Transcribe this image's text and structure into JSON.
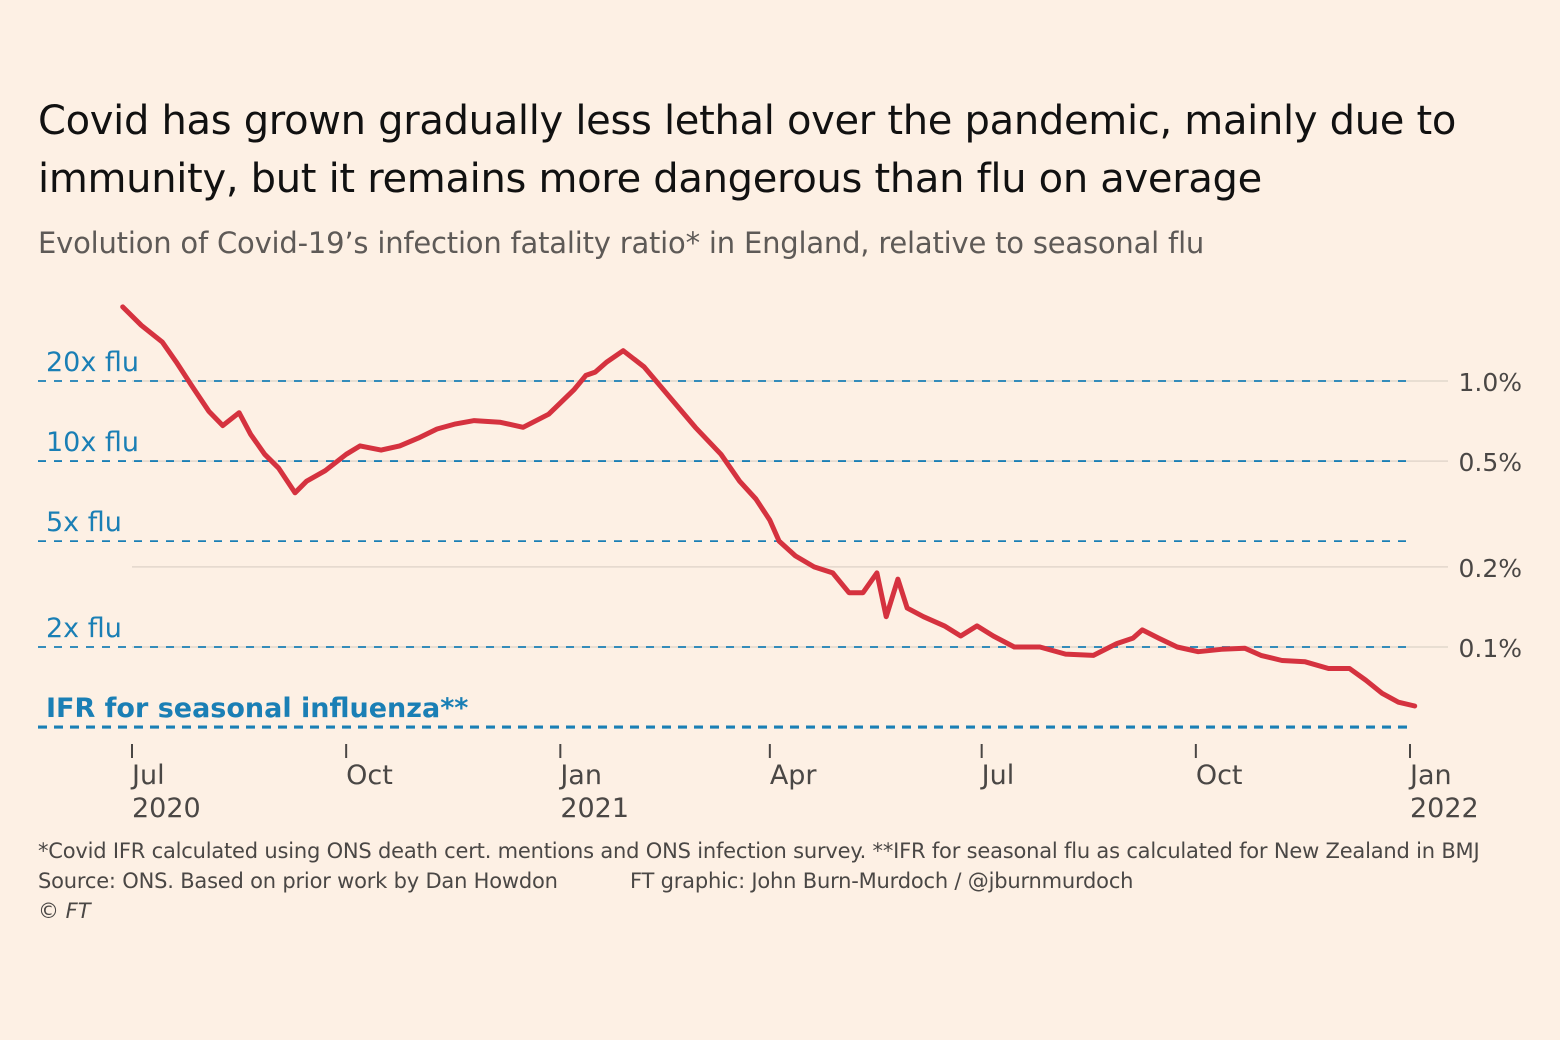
{
  "title": "Covid has grown gradually less lethal over the pandemic, mainly due to immunity, but it remains more dangerous than flu on average",
  "subtitle": "Evolution of Covid-19’s infection fatality ratio* in England, relative to seasonal flu",
  "footnote": "*Covid IFR calculated using ONS death cert. mentions and ONS infection survey. **IFR for seasonal flu as calculated for New Zealand in BMJ",
  "source": "Source: ONS. Based on prior work by Dan Howdon",
  "credit": "FT graphic: John Burn-Murdoch / @jburnmurdoch",
  "copyright": "© FT",
  "colors": {
    "background": "#fdf0e4",
    "series": "#d5323f",
    "reference": "#1a7fb5",
    "gridline": "#e2d7cc",
    "axis_text": "#4a4745"
  },
  "chart_data": {
    "type": "line",
    "title": "Covid has grown gradually less lethal over the pandemic, mainly due to immunity, but it remains more dangerous than flu on average",
    "subtitle": "Evolution of Covid-19’s infection fatality ratio* in England, relative to seasonal flu",
    "xlabel": "",
    "ylabel": "",
    "y_scale": "log",
    "ylim": [
      0.04,
      2.2
    ],
    "xlim": [
      "2020-06-01",
      "2022-01-12"
    ],
    "grid": true,
    "x_ticks": [
      {
        "date": "2020-07-01",
        "label": "Jul",
        "label2": "2020"
      },
      {
        "date": "2020-10-01",
        "label": "Oct",
        "label2": ""
      },
      {
        "date": "2021-01-01",
        "label": "Jan",
        "label2": "2021"
      },
      {
        "date": "2021-04-01",
        "label": "Apr",
        "label2": ""
      },
      {
        "date": "2021-07-01",
        "label": "Jul",
        "label2": ""
      },
      {
        "date": "2021-10-01",
        "label": "Oct",
        "label2": ""
      },
      {
        "date": "2022-01-01",
        "label": "Jan",
        "label2": "2022"
      }
    ],
    "y_ticks": [
      {
        "value": 1.0,
        "label": "1.0%"
      },
      {
        "value": 0.5,
        "label": "0.5%"
      },
      {
        "value": 0.2,
        "label": "0.2%"
      },
      {
        "value": 0.1,
        "label": "0.1%"
      }
    ],
    "reference_lines": [
      {
        "label": "20x flu",
        "multiple": 20,
        "emphasis": false
      },
      {
        "label": "10x flu",
        "multiple": 10,
        "emphasis": false
      },
      {
        "label": "5x flu",
        "multiple": 5,
        "emphasis": false
      },
      {
        "label": "2x flu",
        "multiple": 2,
        "emphasis": false
      },
      {
        "label": "IFR for seasonal influenza**",
        "multiple": 1,
        "emphasis": true
      }
    ],
    "series": [
      {
        "name": "Covid-19 infection fatality ratio (%)",
        "x": [
          "2020-06-27",
          "2020-07-05",
          "2020-07-14",
          "2020-07-20",
          "2020-07-27",
          "2020-08-03",
          "2020-08-09",
          "2020-08-16",
          "2020-08-21",
          "2020-08-27",
          "2020-09-02",
          "2020-09-09",
          "2020-09-14",
          "2020-09-22",
          "2020-10-01",
          "2020-10-07",
          "2020-10-16",
          "2020-10-24",
          "2020-11-01",
          "2020-11-09",
          "2020-11-17",
          "2020-11-25",
          "2020-12-06",
          "2020-12-16",
          "2020-12-27",
          "2021-01-07",
          "2021-01-12",
          "2021-01-16",
          "2021-01-21",
          "2021-01-28",
          "2021-02-06",
          "2021-02-17",
          "2021-02-28",
          "2021-03-11",
          "2021-03-19",
          "2021-03-26",
          "2021-04-01",
          "2021-04-05",
          "2021-04-12",
          "2021-04-20",
          "2021-04-28",
          "2021-05-05",
          "2021-05-11",
          "2021-05-17",
          "2021-05-21",
          "2021-05-26",
          "2021-05-30",
          "2021-06-06",
          "2021-06-15",
          "2021-06-22",
          "2021-06-29",
          "2021-07-06",
          "2021-07-15",
          "2021-07-26",
          "2021-08-06",
          "2021-08-18",
          "2021-08-28",
          "2021-09-04",
          "2021-09-08",
          "2021-09-15",
          "2021-09-23",
          "2021-10-02",
          "2021-10-12",
          "2021-10-22",
          "2021-10-29",
          "2021-11-07",
          "2021-11-17",
          "2021-11-27",
          "2021-12-06",
          "2021-12-13",
          "2021-12-20",
          "2021-12-27",
          "2022-01-03"
        ],
        "values": [
          1.9,
          1.62,
          1.4,
          1.18,
          0.95,
          0.77,
          0.68,
          0.76,
          0.63,
          0.53,
          0.47,
          0.38,
          0.42,
          0.46,
          0.53,
          0.57,
          0.55,
          0.57,
          0.61,
          0.66,
          0.69,
          0.71,
          0.7,
          0.67,
          0.75,
          0.93,
          1.05,
          1.08,
          1.18,
          1.3,
          1.13,
          0.87,
          0.67,
          0.53,
          0.42,
          0.36,
          0.3,
          0.25,
          0.22,
          0.2,
          0.19,
          0.16,
          0.16,
          0.19,
          0.13,
          0.18,
          0.14,
          0.13,
          0.12,
          0.11,
          0.12,
          0.11,
          0.1,
          0.1,
          0.094,
          0.093,
          0.103,
          0.108,
          0.116,
          0.108,
          0.1,
          0.096,
          0.098,
          0.099,
          0.093,
          0.089,
          0.088,
          0.083,
          0.083,
          0.075,
          0.067,
          0.062,
          0.06
        ]
      }
    ]
  }
}
